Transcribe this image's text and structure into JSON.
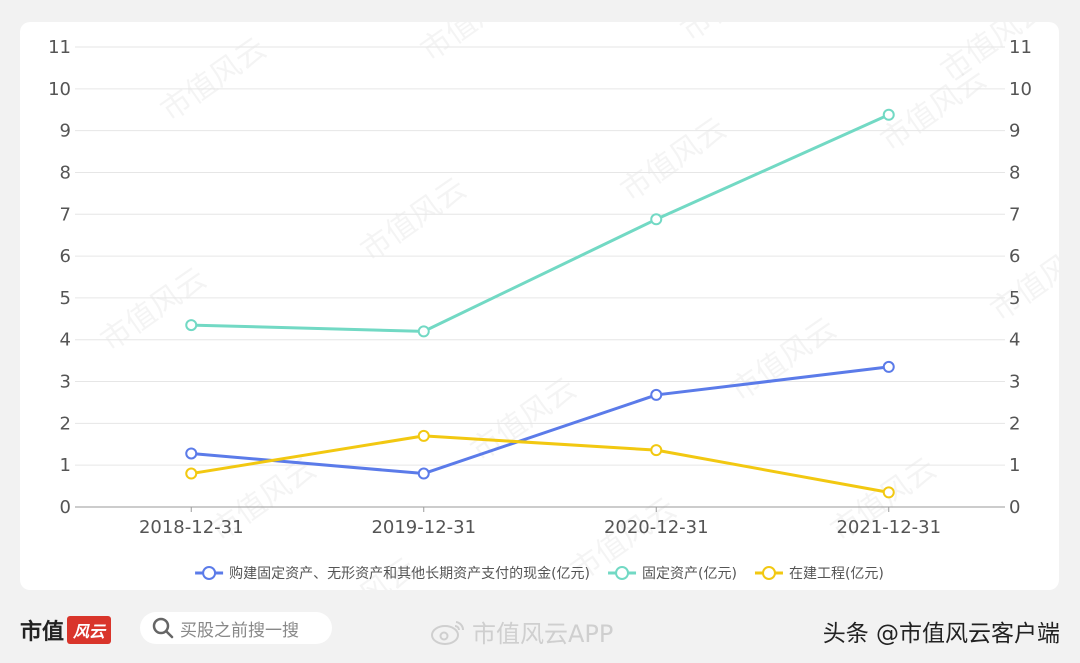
{
  "chart_data": {
    "type": "line",
    "categories": [
      "2018-12-31",
      "2019-12-31",
      "2020-12-31",
      "2021-12-31"
    ],
    "series": [
      {
        "name": "购建固定资产、无形资产和其他长期资产支付的现金(亿元)",
        "color": "#5b7be9",
        "values": [
          1.28,
          0.8,
          2.68,
          3.35
        ]
      },
      {
        "name": "固定资产(亿元)",
        "color": "#72d9c4",
        "values": [
          4.35,
          4.2,
          6.88,
          9.38
        ]
      },
      {
        "name": "在建工程(亿元)",
        "color": "#f2c811",
        "values": [
          0.8,
          1.7,
          1.36,
          0.35
        ]
      }
    ],
    "ylim": [
      0,
      11
    ],
    "yticks": [
      "0",
      "1",
      "2",
      "3",
      "4",
      "5",
      "6",
      "7",
      "8",
      "9",
      "10",
      "11"
    ],
    "grid": true,
    "legend_position": "bottom"
  },
  "watermark": "市值风云",
  "footer": {
    "brand": "市值",
    "brand_logo": "风云",
    "search_icon": "search-icon",
    "search_text": "买股之前搜一搜",
    "weibo_icon": "weibo-icon",
    "weibo_text": "市值风云APP",
    "toutiao_text": "头条 @市值风云客户端"
  }
}
